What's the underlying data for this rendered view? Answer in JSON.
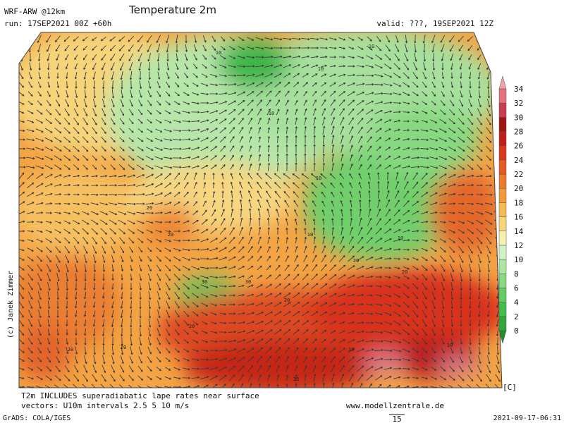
{
  "header": {
    "model": "WRF-ARW @12km",
    "title": "Temperature 2m",
    "run": "run: 17SEP2021 00Z +60h",
    "valid": "valid: ???, 19SEP2021 12Z"
  },
  "colorbar": {
    "unit": "[C]",
    "labels": [
      "0",
      "2",
      "4",
      "6",
      "8",
      "10",
      "12",
      "14",
      "16",
      "18",
      "20",
      "22",
      "24",
      "26",
      "28",
      "30",
      "32",
      "34"
    ],
    "colors": [
      "#1f8f2f",
      "#2ea83a",
      "#45bd4c",
      "#63cc63",
      "#86da80",
      "#abe6a0",
      "#d2f2c4",
      "#f5efb0",
      "#f7d67a",
      "#f6bb55",
      "#f29a3a",
      "#ec7a2c",
      "#e55a22",
      "#d9381c",
      "#c01e18",
      "#a01414",
      "#c83c50",
      "#e2707e",
      "#f0a0a8"
    ]
  },
  "map": {
    "contour_labels": [
      "10",
      "10",
      "10",
      "10",
      "10",
      "10",
      "10",
      "20",
      "20",
      "20",
      "20",
      "20",
      "20",
      "20",
      "20",
      "30",
      "30",
      "30",
      "10",
      "10"
    ],
    "copyright": "(c) Janek Zimmer"
  },
  "footer": {
    "note": "T2m INCLUDES superadiabatic lape rates near surface",
    "vectors": "vectors: U10m intervals 2.5 5 10 m/s",
    "site": "www.modellzentrale.de",
    "grads": "GrADS: COLA/IGES",
    "ref_vector": "15",
    "timestamp": "2021-09-17-06:31"
  }
}
